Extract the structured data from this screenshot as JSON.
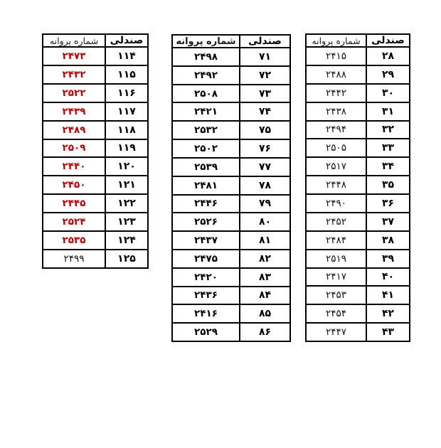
{
  "colors": {
    "background": "#ffffff",
    "border": "#000000",
    "text": "#000000",
    "license_red": "#c00000"
  },
  "tables": [
    {
      "position": "left",
      "header": {
        "license": "شماره پروانه",
        "seat": "صندلی"
      },
      "rows": [
        {
          "seat": "۱۱۴",
          "license": "۲۴۷۳",
          "license_style": "red-bold"
        },
        {
          "seat": "۱۱۵",
          "license": "۲۴۳۲",
          "license_style": "red-bold"
        },
        {
          "seat": "۱۱۶",
          "license": "۲۵۲۲",
          "license_style": "red-bold"
        },
        {
          "seat": "۱۱۷",
          "license": "۲۴۳۹",
          "license_style": "red-bold"
        },
        {
          "seat": "۱۱۸",
          "license": "۲۴۸۹",
          "license_style": "red-bold"
        },
        {
          "seat": "۱۱۹",
          "license": "۲۵۰۹",
          "license_style": "red-bold"
        },
        {
          "seat": "۱۲۰",
          "license": "۲۴۴۰",
          "license_style": "red-bold"
        },
        {
          "seat": "۱۲۱",
          "license": "۲۴۵۰",
          "license_style": "red-bold"
        },
        {
          "seat": "۱۲۲",
          "license": "۲۴۴۵",
          "license_style": "red-bold"
        },
        {
          "seat": "۱۲۳",
          "license": "۲۵۲۴",
          "license_style": "red-bold"
        },
        {
          "seat": "۱۲۴",
          "license": "۲۵۳۵",
          "license_style": "red-bold"
        },
        {
          "seat": "۱۲۵",
          "license": "۲۴۹۹",
          "license_style": "black-normal"
        }
      ]
    },
    {
      "position": "middle",
      "header": {
        "license": "شماره پروانه",
        "seat": "صندلی"
      },
      "rows": [
        {
          "seat": "۷۱",
          "license": "۲۴۹۸",
          "license_style": "black-bold"
        },
        {
          "seat": "۷۲",
          "license": "۲۴۹۲",
          "license_style": "black-bold"
        },
        {
          "seat": "۷۳",
          "license": "۲۵۰۸",
          "license_style": "black-bold"
        },
        {
          "seat": "۷۴",
          "license": "۲۴۲۱",
          "license_style": "black-bold"
        },
        {
          "seat": "۷۵",
          "license": "۲۵۳۲",
          "license_style": "black-bold"
        },
        {
          "seat": "۷۶",
          "license": "۲۵۰۲",
          "license_style": "black-bold"
        },
        {
          "seat": "۷۷",
          "license": "۲۵۳۹",
          "license_style": "black-bold"
        },
        {
          "seat": "۷۸",
          "license": "۲۴۸۱",
          "license_style": "black-bold"
        },
        {
          "seat": "۷۹",
          "license": "۲۴۴۶",
          "license_style": "black-bold"
        },
        {
          "seat": "۸۰",
          "license": "۲۵۲۶",
          "license_style": "black-bold"
        },
        {
          "seat": "۸۱",
          "license": "۲۴۳۷",
          "license_style": "black-bold"
        },
        {
          "seat": "۸۲",
          "license": "۲۴۷۵",
          "license_style": "black-bold"
        },
        {
          "seat": "۸۳",
          "license": "۲۴۲۰",
          "license_style": "black-bold"
        },
        {
          "seat": "۸۴",
          "license": "۲۴۳۶",
          "license_style": "black-bold"
        },
        {
          "seat": "۸۵",
          "license": "۲۴۱۶",
          "license_style": "black-bold"
        },
        {
          "seat": "۸۶",
          "license": "۲۵۲۹",
          "license_style": "black-bold"
        }
      ]
    },
    {
      "position": "right",
      "header": {
        "license": "شماره پروانه",
        "seat": "صندلی"
      },
      "rows": [
        {
          "seat": "۲۸",
          "license": "۲۴۱۵",
          "license_style": "black-normal"
        },
        {
          "seat": "۲۹",
          "license": "۲۴۸۸",
          "license_style": "black-normal"
        },
        {
          "seat": "۳۰",
          "license": "۲۴۴۲",
          "license_style": "black-normal"
        },
        {
          "seat": "۳۱",
          "license": "۲۴۳۸",
          "license_style": "black-normal"
        },
        {
          "seat": "۳۲",
          "license": "۲۴۹۴",
          "license_style": "black-normal"
        },
        {
          "seat": "۳۳",
          "license": "۲۵۰۵",
          "license_style": "black-normal"
        },
        {
          "seat": "۳۴",
          "license": "۲۵۱۷",
          "license_style": "black-normal"
        },
        {
          "seat": "۳۵",
          "license": "۲۴۴۸",
          "license_style": "black-normal"
        },
        {
          "seat": "۳۶",
          "license": "۲۴۹۰",
          "license_style": "black-normal"
        },
        {
          "seat": "۳۷",
          "license": "۲۴۵۲",
          "license_style": "black-normal"
        },
        {
          "seat": "۳۸",
          "license": "۲۴۸۴",
          "license_style": "black-normal"
        },
        {
          "seat": "۳۹",
          "license": "۲۵۱۹",
          "license_style": "black-normal"
        },
        {
          "seat": "۴۰",
          "license": "۲۴۱۷",
          "license_style": "black-normal"
        },
        {
          "seat": "۴۱",
          "license": "۲۴۵۳",
          "license_style": "black-normal"
        },
        {
          "seat": "۴۲",
          "license": "۲۴۵۴",
          "license_style": "black-normal"
        },
        {
          "seat": "۴۳",
          "license": "۲۴۴۷",
          "license_style": "black-normal"
        }
      ]
    }
  ]
}
